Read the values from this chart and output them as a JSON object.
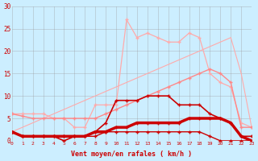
{
  "x": [
    0,
    1,
    2,
    3,
    4,
    5,
    6,
    7,
    8,
    9,
    10,
    11,
    12,
    13,
    14,
    15,
    16,
    17,
    18,
    19,
    20,
    21,
    22,
    23
  ],
  "line_lightpink_straight": [
    2,
    3,
    4,
    5,
    6,
    7,
    8,
    9,
    10,
    11,
    12,
    13,
    14,
    15,
    16,
    17,
    18,
    19,
    20,
    21,
    22,
    23,
    15,
    3
  ],
  "line_lightpink_peaked": [
    6,
    6,
    6,
    6,
    5,
    5,
    3,
    3,
    8,
    8,
    8,
    27,
    23,
    24,
    23,
    22,
    22,
    24,
    23,
    15,
    13,
    12,
    4,
    3
  ],
  "line_pink_medium": [
    6,
    5.5,
    5,
    5,
    5,
    5,
    5,
    5,
    5,
    6,
    7,
    8,
    9,
    10,
    11,
    12,
    13,
    14,
    15,
    16,
    15,
    13,
    3,
    3
  ],
  "line_darkred_peaked": [
    2,
    1,
    1,
    1,
    1,
    0,
    1,
    1,
    2,
    4,
    9,
    9,
    9,
    10,
    10,
    10,
    8,
    8,
    8,
    6,
    5,
    4,
    1,
    1
  ],
  "line_darkred_thick": [
    2,
    1,
    1,
    1,
    1,
    1,
    1,
    1,
    2,
    2,
    3,
    3,
    4,
    4,
    4,
    4,
    4,
    5,
    5,
    5,
    5,
    4,
    1,
    0
  ],
  "line_darkred_thin": [
    2,
    1,
    1,
    1,
    1,
    1,
    1,
    1,
    1,
    2,
    2,
    2,
    2,
    2,
    2,
    2,
    2,
    2,
    2,
    1,
    0,
    0,
    0,
    0
  ],
  "background_color": "#cceeff",
  "grid_color": "#999999",
  "xlabel": "Vent moyen/en rafales ( km/h )",
  "ylim": [
    0,
    30
  ],
  "xlim": [
    0,
    23
  ]
}
